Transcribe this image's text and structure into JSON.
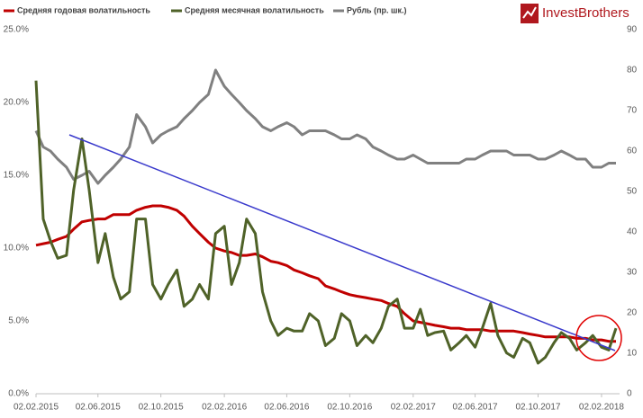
{
  "chart_data": {
    "type": "line",
    "watermark": "InvestBrothers",
    "x": [
      "02.02.2015",
      "16.02.2015",
      "02.03.2015",
      "16.03.2015",
      "02.04.2015",
      "16.04.2015",
      "02.05.2015",
      "16.05.2015",
      "02.06.2015",
      "16.06.2015",
      "02.07.2015",
      "16.07.2015",
      "02.08.2015",
      "16.08.2015",
      "02.09.2015",
      "16.09.2015",
      "02.10.2015",
      "16.10.2015",
      "02.11.2015",
      "16.11.2015",
      "02.12.2015",
      "16.12.2015",
      "02.01.2016",
      "16.01.2016",
      "02.02.2016",
      "16.02.2016",
      "02.03.2016",
      "16.03.2016",
      "02.04.2016",
      "16.04.2016",
      "02.05.2016",
      "16.05.2016",
      "02.06.2016",
      "16.06.2016",
      "02.07.2016",
      "16.07.2016",
      "02.08.2016",
      "16.08.2016",
      "02.09.2016",
      "16.09.2016",
      "02.10.2016",
      "16.10.2016",
      "02.11.2016",
      "16.11.2016",
      "02.12.2016",
      "16.12.2016",
      "02.01.2017",
      "16.01.2017",
      "02.02.2017",
      "16.02.2017",
      "02.03.2017",
      "16.03.2017",
      "02.04.2017",
      "16.04.2017",
      "02.05.2017",
      "16.05.2017",
      "02.06.2017",
      "16.06.2017",
      "02.07.2017",
      "16.07.2017",
      "02.08.2017",
      "16.08.2017",
      "02.09.2017",
      "16.09.2017",
      "02.10.2017",
      "16.10.2017",
      "02.11.2017",
      "16.11.2017",
      "02.12.2017",
      "16.12.2017",
      "02.01.2018",
      "16.01.2018",
      "02.02.2018",
      "16.02.2018",
      "02.03.2018"
    ],
    "xlim": [
      "02.02.2015",
      "09.03.2018"
    ],
    "xticks": [
      "02.02.2015",
      "02.06.2015",
      "02.10.2015",
      "02.02.2016",
      "02.06.2016",
      "02.10.2016",
      "02.02.2017",
      "02.06.2017",
      "02.10.2017",
      "02.02.2018"
    ],
    "ylim": [
      0,
      25
    ],
    "yticks": [
      {
        "value": 0,
        "label": "0.0%"
      },
      {
        "value": 5,
        "label": "5.0%"
      },
      {
        "value": 10,
        "label": "10.0%"
      },
      {
        "value": 15,
        "label": "15.0%"
      },
      {
        "value": 20,
        "label": "20.0%"
      },
      {
        "value": 25,
        "label": "25.0%"
      }
    ],
    "y2lim": [
      0,
      90
    ],
    "y2ticks": [
      0,
      10,
      20,
      30,
      40,
      50,
      60,
      70,
      80,
      90
    ],
    "series": [
      {
        "name": "Средняя годовая волатильность",
        "color": "#c00000",
        "values": [
          10.2,
          10.3,
          10.4,
          10.6,
          10.8,
          11.3,
          11.8,
          11.9,
          12.0,
          12.0,
          12.3,
          12.3,
          12.3,
          12.6,
          12.8,
          12.9,
          12.9,
          12.8,
          12.6,
          12.2,
          11.5,
          11.0,
          10.4,
          10.0,
          9.8,
          9.7,
          9.5,
          9.5,
          9.6,
          9.4,
          9.1,
          9.0,
          8.8,
          8.5,
          8.3,
          8.1,
          7.9,
          7.4,
          7.2,
          7.0,
          6.8,
          6.7,
          6.6,
          6.5,
          6.4,
          6.2,
          6.0,
          5.5,
          5.0,
          4.9,
          4.8,
          4.7,
          4.6,
          4.5,
          4.5,
          4.4,
          4.4,
          4.4,
          4.3,
          4.3,
          4.3,
          4.3,
          4.2,
          4.1,
          4.0,
          3.9,
          3.9,
          3.9,
          3.9,
          3.8,
          3.8,
          3.7,
          3.7,
          3.6,
          3.6
        ]
      },
      {
        "name": "Средняя месячная волатильность",
        "color": "#4f6228",
        "values": [
          21.5,
          12,
          10.5,
          9.3,
          9.5,
          14,
          17.5,
          14,
          9,
          11,
          8,
          6.5,
          7,
          12,
          12,
          7.5,
          6.5,
          7.5,
          8.5,
          6,
          6.5,
          7.5,
          6.5,
          11,
          11.5,
          7.5,
          9,
          12,
          11,
          7,
          5,
          4,
          4.5,
          4.3,
          4.3,
          5.5,
          5,
          3.3,
          3.8,
          5.5,
          5,
          3.3,
          4,
          3.5,
          4.5,
          6,
          6.5,
          4.5,
          4.5,
          5.8,
          4,
          4.2,
          4.3,
          3,
          3.5,
          4,
          3.2,
          4.5,
          6.2,
          4,
          2.8,
          2.5,
          3.8,
          3.5,
          2.1,
          2.5,
          3.5,
          4.2,
          3.8,
          3,
          3.5,
          4,
          3.2,
          3,
          4.5
        ]
      },
      {
        "name": "Рубль (пр. шк.)",
        "color": "#808080",
        "axis": "y2",
        "values": [
          65,
          61,
          60,
          58,
          56,
          53,
          54,
          55,
          52,
          54,
          56,
          58,
          61,
          69,
          66,
          62,
          64,
          65,
          66,
          68,
          70,
          72,
          74,
          80,
          76,
          74,
          72,
          70,
          68,
          66,
          65,
          66,
          67,
          66,
          64,
          65,
          65,
          65,
          64,
          63,
          63,
          64,
          63,
          61,
          60,
          59,
          58,
          58,
          59,
          58,
          57,
          57,
          57,
          57,
          57,
          58,
          58,
          59,
          60,
          60,
          60,
          59,
          59,
          59,
          58,
          58,
          59,
          60,
          59,
          58,
          58,
          56,
          56,
          57,
          57
        ]
      }
    ]
  }
}
